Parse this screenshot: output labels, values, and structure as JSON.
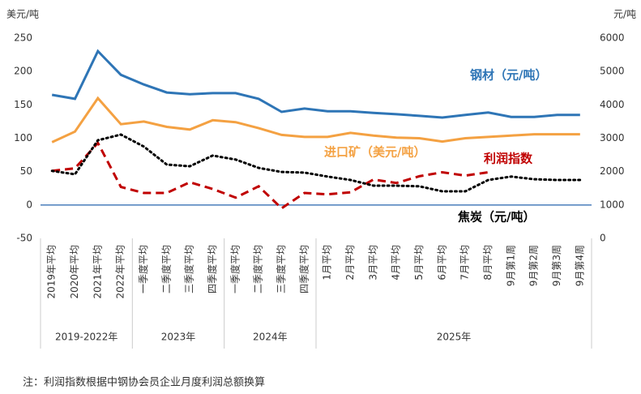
{
  "chart_data": {
    "type": "line",
    "ylabel": "美元/吨",
    "y2label": "元/吨",
    "categories": [
      "2019年平均",
      "2020年平均",
      "2021年平均",
      "2022年平均",
      "一季度平均",
      "二季度平均",
      "三季度平均",
      "四季度平均",
      "一季度平均",
      "二季度平均",
      "三季度平均",
      "四季度平均",
      "1月平均",
      "2月平均",
      "3月平均",
      "4月平均",
      "5月平均",
      "6月平均",
      "7月平均",
      "8月平均",
      "9月第1周",
      "9月第2周",
      "9月第3周",
      "9月第4周"
    ],
    "groups": [
      {
        "label": "2019-2022年",
        "count": 4
      },
      {
        "label": "2023年",
        "count": 4
      },
      {
        "label": "2024年",
        "count": 4
      },
      {
        "label": "2025年",
        "count": 12
      }
    ],
    "ylim": [
      -50,
      250
    ],
    "yticks": [
      -50,
      0,
      50,
      100,
      150,
      200,
      250
    ],
    "y2lim": [
      0,
      6000
    ],
    "y2ticks": [
      0,
      1000,
      2000,
      3000,
      4000,
      5000,
      6000
    ],
    "zero_line_color": "#4a7ebb",
    "series": [
      {
        "name": "钢材（元/吨）",
        "color": "#2e75b6",
        "style": "solid",
        "axis": "y2",
        "values": [
          4300,
          4180,
          5610,
          4900,
          4610,
          4370,
          4320,
          4350,
          4350,
          4180,
          3790,
          3890,
          3810,
          3810,
          3760,
          3720,
          3670,
          3620,
          3700,
          3770,
          3640,
          3640,
          3700,
          3700
        ]
      },
      {
        "name": "进口矿（美元/吨）",
        "color": "#f4a142",
        "style": "solid",
        "axis": "y",
        "values": [
          94,
          110,
          160,
          121,
          125,
          117,
          113,
          127,
          124,
          115,
          105,
          102,
          102,
          108,
          104,
          101,
          100,
          95,
          100,
          102,
          104,
          106,
          106,
          106
        ]
      },
      {
        "name": "利润指数",
        "color": "#c00000",
        "style": "dashed",
        "axis": "y",
        "values": [
          51,
          55,
          93,
          27,
          18,
          18,
          34,
          24,
          11,
          28,
          -5,
          18,
          16,
          19,
          38,
          33,
          43,
          49,
          44,
          49,
          null,
          null,
          null,
          null
        ]
      },
      {
        "name": "焦炭（元/吨）",
        "color": "#000000",
        "style": "dotted",
        "axis": "y2",
        "values": [
          2020,
          1920,
          2940,
          3110,
          2750,
          2210,
          2160,
          2480,
          2360,
          2110,
          1990,
          1970,
          1850,
          1750,
          1580,
          1580,
          1560,
          1410,
          1410,
          1750,
          1850,
          1770,
          1750,
          1750
        ]
      }
    ],
    "note": "注：利润指数根据中钢协会员企业月度利润总额换算"
  }
}
